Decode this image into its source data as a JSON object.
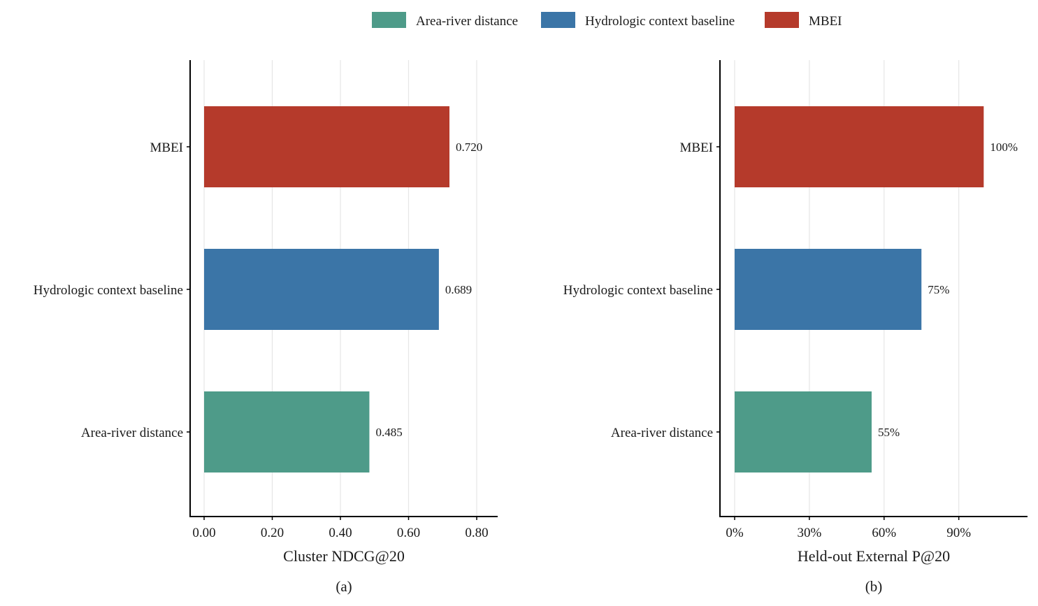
{
  "chart_data": [
    {
      "type": "bar",
      "orientation": "horizontal",
      "panel_label": "(a)",
      "xlabel": "Cluster NDCG@20",
      "ylabel": "",
      "categories": [
        "Area-river distance",
        "Hydrologic context baseline",
        "MBEI"
      ],
      "values": [
        0.485,
        0.689,
        0.72
      ],
      "value_labels": [
        "0.485",
        "0.689",
        "0.720"
      ],
      "xlim": [
        0,
        0.86
      ],
      "x_ticks": [
        0,
        0.2,
        0.4,
        0.6,
        0.8
      ],
      "x_tick_labels": [
        "0.00",
        "0.20",
        "0.40",
        "0.60",
        "0.80"
      ],
      "grid": "vertical major"
    },
    {
      "type": "bar",
      "orientation": "horizontal",
      "panel_label": "(b)",
      "xlabel": "Held-out External P@20",
      "ylabel": "",
      "categories": [
        "Area-river distance",
        "Hydrologic context baseline",
        "MBEI"
      ],
      "values": [
        55,
        75,
        100
      ],
      "value_labels": [
        "55%",
        "75%",
        "100%"
      ],
      "xlim": [
        0,
        114.5
      ],
      "x_ticks": [
        0,
        30,
        60,
        90
      ],
      "x_tick_labels": [
        "0%",
        "30%",
        "60%",
        "90%"
      ],
      "grid": "vertical major"
    }
  ],
  "legend": {
    "position": "top-center",
    "items": [
      {
        "label": "Area-river distance",
        "color": "#4e9b89"
      },
      {
        "label": "Hydrologic context baseline",
        "color": "#3b75a7"
      },
      {
        "label": "MBEI",
        "color": "#b53a2b"
      }
    ]
  }
}
